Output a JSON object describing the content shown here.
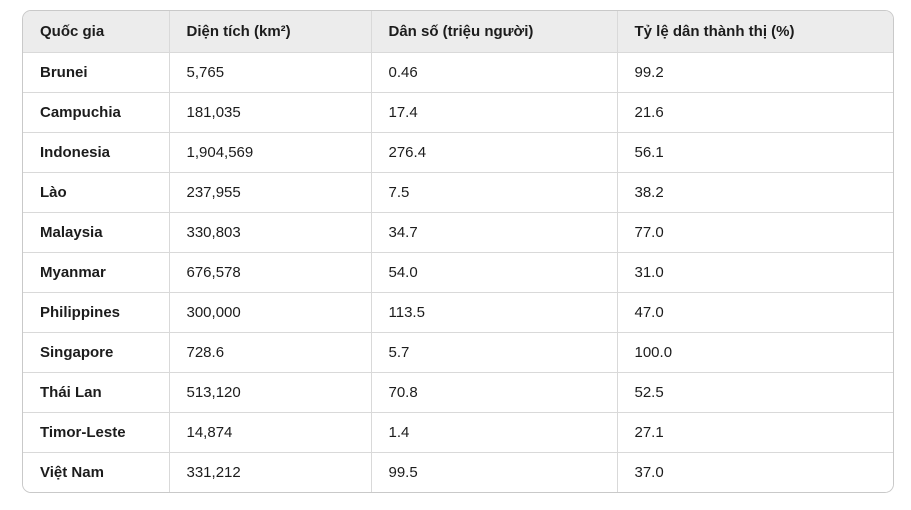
{
  "colors": {
    "header_background": "#ececec",
    "border": "#d9d9d9",
    "text": "#1c1c1c",
    "row_background": "#ffffff"
  },
  "chart_data": {
    "type": "table",
    "columns": [
      "Quốc gia",
      "Diện tích (km²)",
      "Dân số (triệu người)",
      "Tỷ lệ dân thành thị (%)"
    ],
    "rows": [
      [
        "Brunei",
        "5,765",
        "0.46",
        "99.2"
      ],
      [
        "Campuchia",
        "181,035",
        "17.4",
        "21.6"
      ],
      [
        "Indonesia",
        "1,904,569",
        "276.4",
        "56.1"
      ],
      [
        "Lào",
        "237,955",
        "7.5",
        "38.2"
      ],
      [
        "Malaysia",
        "330,803",
        "34.7",
        "77.0"
      ],
      [
        "Myanmar",
        "676,578",
        "54.0",
        "31.0"
      ],
      [
        "Philippines",
        "300,000",
        "113.5",
        "47.0"
      ],
      [
        "Singapore",
        "728.6",
        "5.7",
        "100.0"
      ],
      [
        "Thái Lan",
        "513,120",
        "70.8",
        "52.5"
      ],
      [
        "Timor-Leste",
        "14,874",
        "1.4",
        "27.1"
      ],
      [
        "Việt Nam",
        "331,212",
        "99.5",
        "37.0"
      ]
    ]
  }
}
